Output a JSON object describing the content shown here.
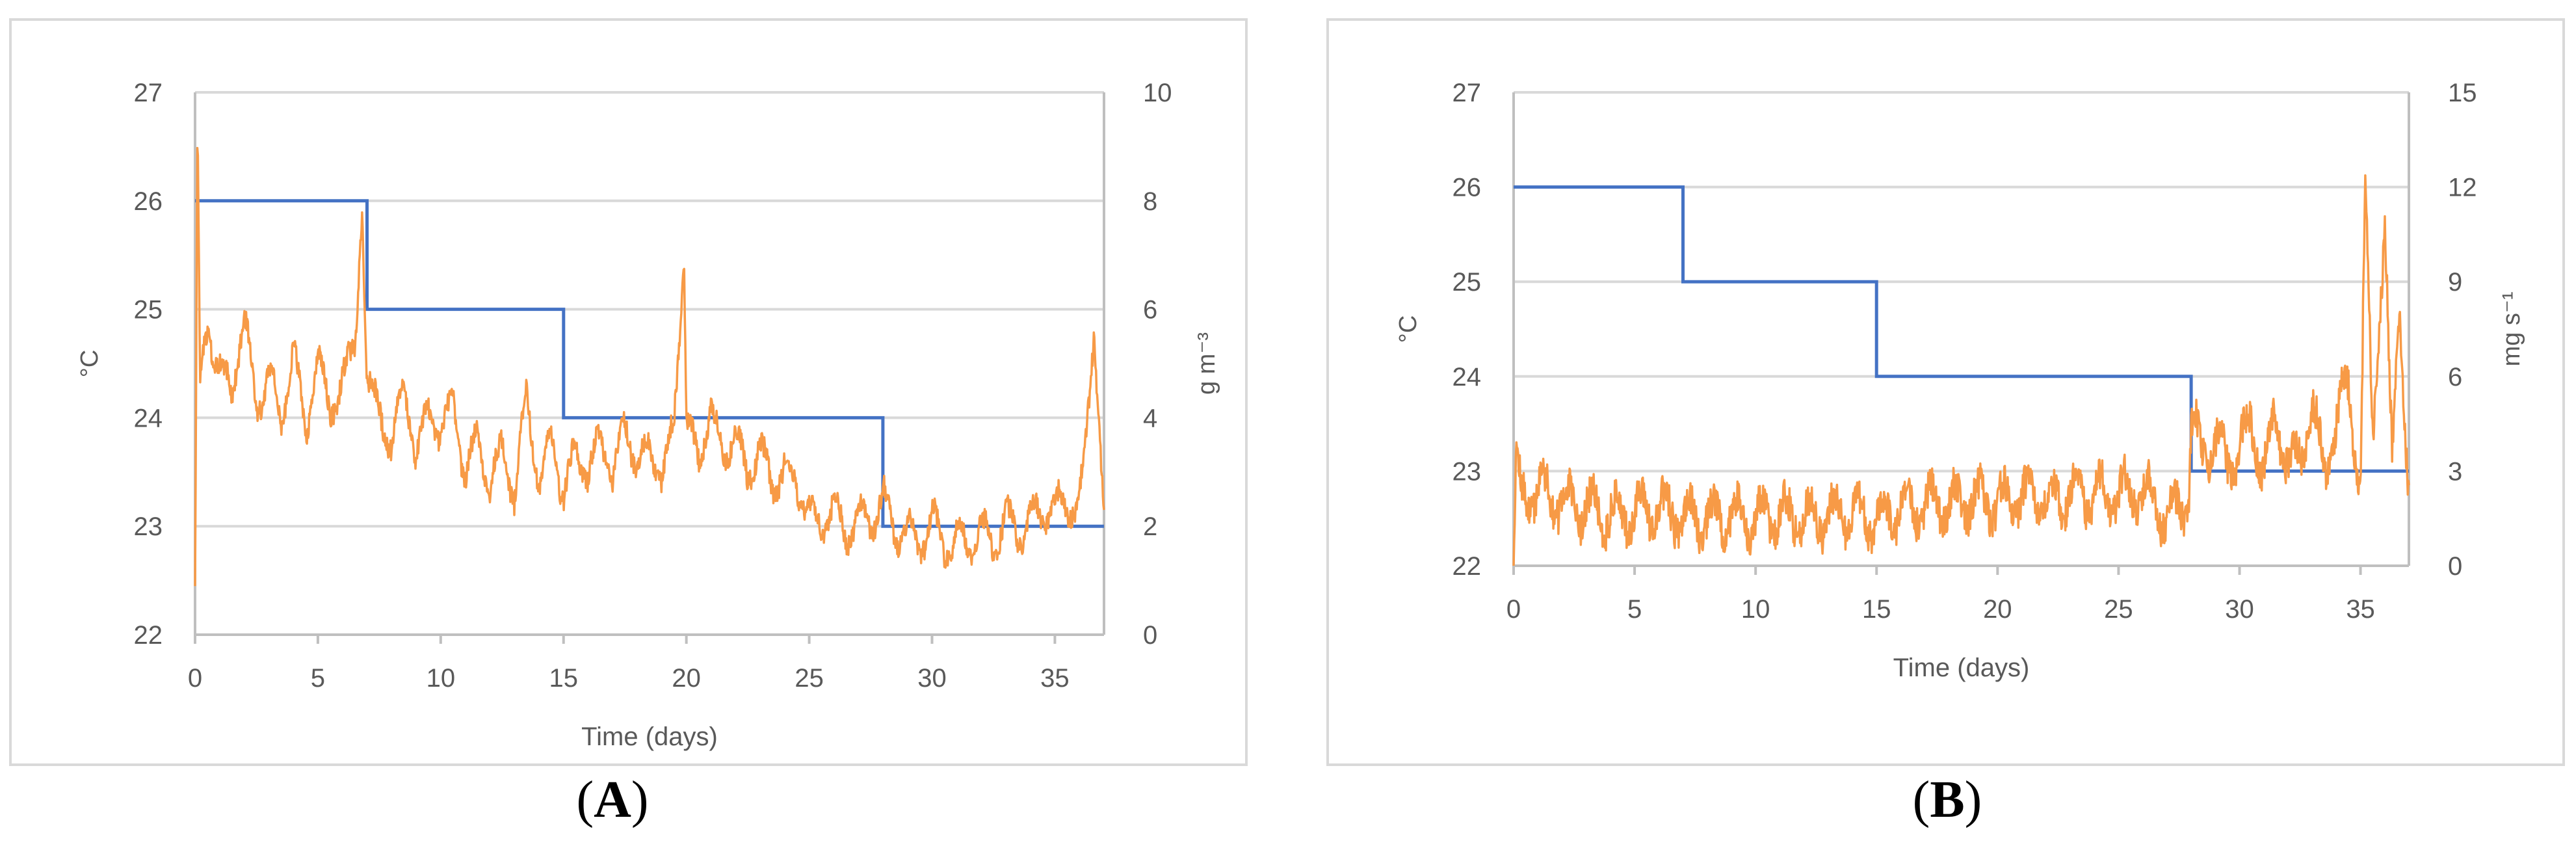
{
  "panels": [
    {
      "label": "A",
      "chart_data": {
        "type": "line",
        "xlabel": "Time (days)",
        "ylabel_left": "°C",
        "ylabel_right": "g m⁻³",
        "xlim": [
          0,
          37
        ],
        "xticks": [
          0,
          5,
          10,
          15,
          20,
          25,
          30,
          35
        ],
        "ylim_left": [
          22,
          27
        ],
        "yticks_left": [
          22,
          23,
          24,
          25,
          26,
          27
        ],
        "ylim_right": [
          0,
          10
        ],
        "yticks_right": [
          0,
          2,
          4,
          6,
          8,
          10
        ],
        "grid": true,
        "series": [
          {
            "axis": "left",
            "style": "step",
            "color": "#4472c4",
            "x": [
              0,
              7,
              7,
              15,
              15,
              28,
              28,
              37
            ],
            "y": [
              26,
              26,
              25,
              25,
              24,
              24,
              23,
              23
            ]
          },
          {
            "axis": "left",
            "style": "noisy",
            "color": "#f79a46",
            "x": [
              0,
              0.1,
              0.2,
              0.5,
              1,
              1.5,
              2,
              2.5,
              3,
              3.5,
              4,
              4.5,
              5,
              5.5,
              6,
              6.5,
              6.8,
              7,
              7.5,
              8,
              8.5,
              9,
              9.5,
              10,
              10.5,
              11,
              11.5,
              12,
              12.5,
              13,
              13.5,
              14,
              14.5,
              15,
              15.5,
              16,
              16.5,
              17,
              17.5,
              18,
              18.5,
              19,
              19.5,
              19.9,
              20,
              20.5,
              21,
              21.5,
              22,
              22.5,
              23,
              23.5,
              24,
              24.5,
              25,
              25.5,
              26,
              26.5,
              27,
              27.5,
              28,
              28.5,
              29,
              29.5,
              30,
              30.5,
              31,
              31.5,
              32,
              32.5,
              33,
              33.5,
              34,
              34.5,
              35,
              35.5,
              36,
              36.3,
              36.6,
              37
            ],
            "y": [
              22.5,
              26.7,
              24.3,
              24.8,
              24.5,
              24.2,
              25.0,
              24.0,
              24.5,
              23.9,
              24.7,
              23.8,
              24.6,
              24.0,
              24.4,
              24.6,
              26.0,
              24.3,
              24.1,
              23.7,
              24.4,
              23.6,
              24.1,
              23.8,
              24.2,
              23.4,
              23.9,
              23.3,
              23.8,
              23.2,
              24.3,
              23.3,
              23.9,
              23.2,
              23.8,
              23.4,
              23.9,
              23.4,
              24.0,
              23.5,
              23.8,
              23.4,
              24.0,
              25.5,
              24.0,
              23.6,
              24.1,
              23.6,
              23.9,
              23.4,
              23.8,
              23.3,
              23.6,
              23.3,
              23.2,
              22.9,
              23.3,
              22.8,
              23.2,
              22.9,
              23.4,
              22.8,
              23.1,
              22.7,
              23.2,
              22.7,
              23.0,
              22.7,
              23.1,
              22.7,
              23.2,
              22.8,
              23.2,
              23.0,
              23.3,
              23.1,
              23.3,
              23.8,
              24.8,
              23.2
            ]
          }
        ]
      }
    },
    {
      "label": "B",
      "chart_data": {
        "type": "line",
        "xlabel": "Time (days)",
        "ylabel_left": "°C",
        "ylabel_right": "mg s⁻¹",
        "xlim": [
          0,
          37
        ],
        "xticks": [
          0,
          5,
          10,
          15,
          20,
          25,
          30,
          35
        ],
        "ylim_left": [
          22,
          27
        ],
        "yticks_left": [
          22,
          23,
          24,
          25,
          26,
          27
        ],
        "ylim_right": [
          0,
          15
        ],
        "yticks_right": [
          0,
          3,
          6,
          9,
          12,
          15
        ],
        "grid": true,
        "series": [
          {
            "axis": "left",
            "style": "step",
            "color": "#4472c4",
            "x": [
              0,
              7,
              7,
              15,
              15,
              28,
              28,
              37
            ],
            "y": [
              26,
              26,
              25,
              25,
              24,
              24,
              23,
              23
            ]
          },
          {
            "axis": "right",
            "style": "noisy",
            "color": "#f79a46",
            "x": [
              0,
              0.1,
              0.3,
              1,
              2,
              3,
              4,
              5,
              6,
              7,
              8,
              9,
              10,
              11,
              12,
              13,
              14,
              15,
              16,
              17,
              18,
              19,
              20,
              21,
              22,
              23,
              24,
              25,
              26,
              27,
              27.9,
              28,
              28.5,
              29,
              29.5,
              30,
              30.5,
              31,
              31.5,
              32,
              32.5,
              33,
              33.5,
              34,
              34.5,
              35,
              35.2,
              35.5,
              36,
              36.3,
              36.6,
              37
            ],
            "y": [
              0.1,
              3.5,
              2.0,
              2.5,
              2.0,
              1.8,
              1.6,
              1.7,
              1.8,
              1.6,
              1.5,
              1.6,
              1.5,
              1.6,
              1.5,
              1.6,
              1.7,
              1.5,
              1.8,
              1.9,
              2.0,
              2.1,
              2.0,
              2.2,
              2.1,
              2.3,
              2.2,
              2.3,
              2.4,
              1.5,
              2.2,
              4.5,
              3.5,
              4.0,
              3.2,
              3.8,
              4.5,
              3.0,
              4.8,
              3.2,
              3.5,
              5.0,
              3.0,
              4.5,
              5.8,
              2.5,
              12.0,
              4.0,
              11.0,
              3.0,
              8.5,
              2.0
            ]
          }
        ]
      }
    }
  ]
}
